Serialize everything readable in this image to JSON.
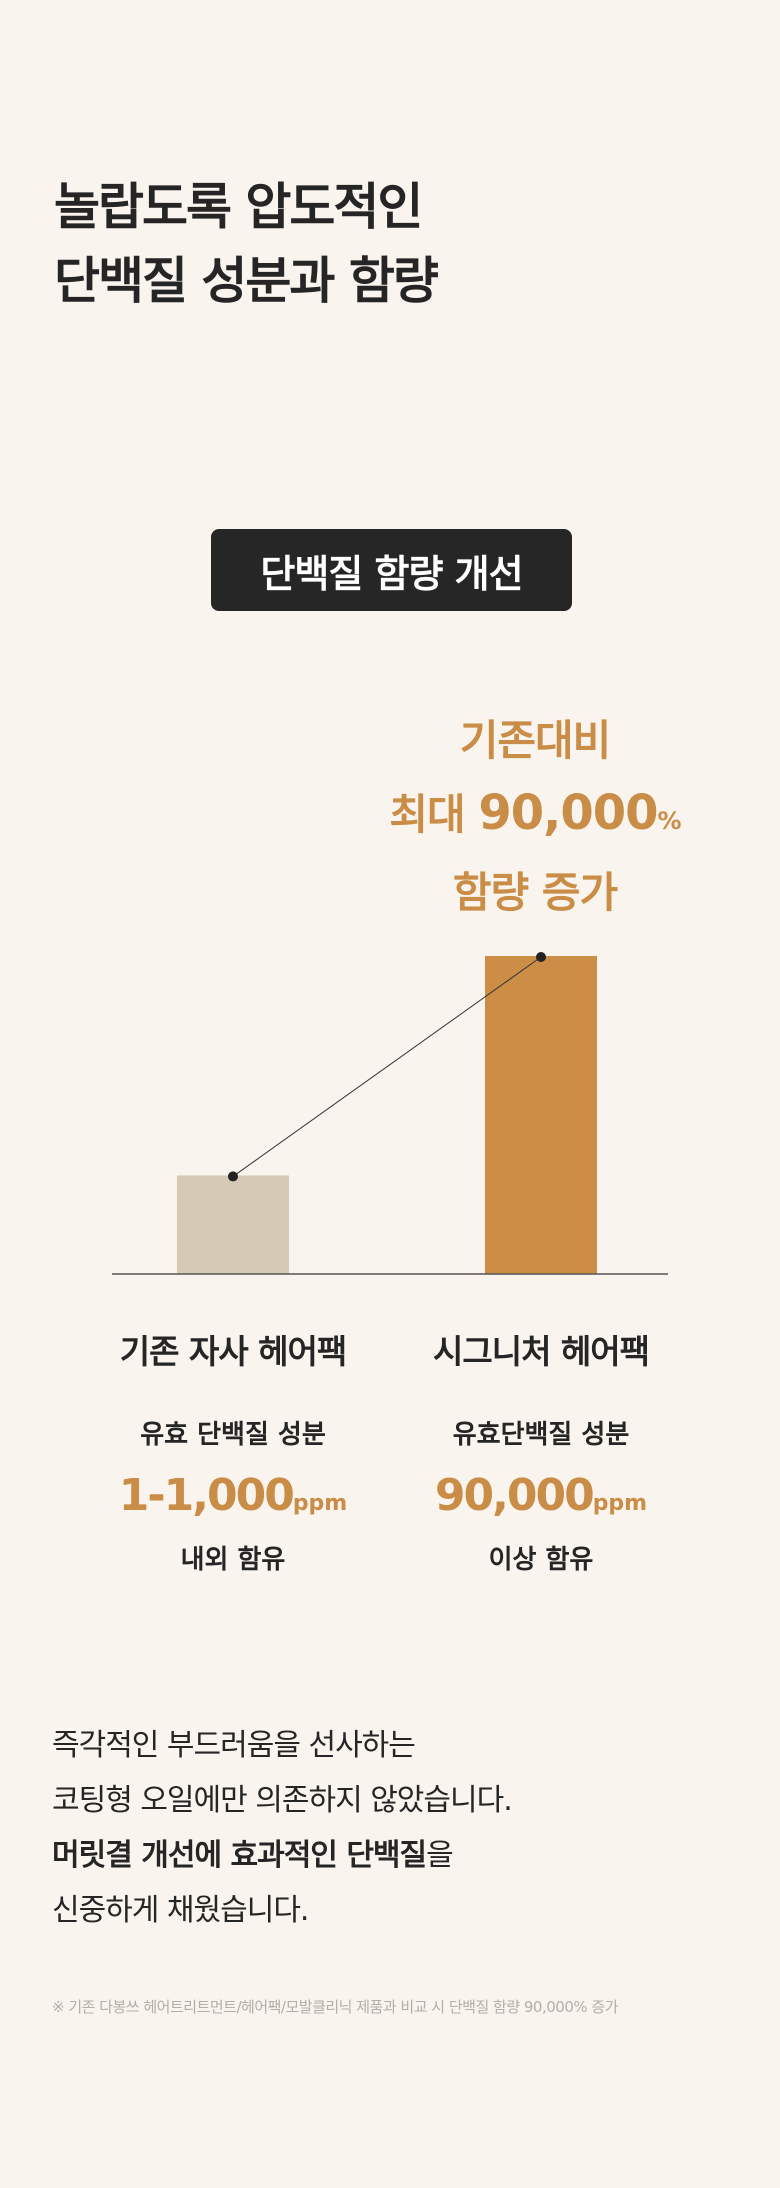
{
  "title": {
    "line1": "놀랍도록 압도적인",
    "line2": "단백질 성분과 함량"
  },
  "badge": "단백질 함량 개선",
  "callout": {
    "line1": "기존대비",
    "line2_prefix": "최대",
    "line2_value": "90,000",
    "line2_unit": "%",
    "line3": "함량 증가"
  },
  "chart_data": {
    "type": "bar",
    "categories": [
      "기존 자사 헤어팩",
      "시그니처 헤어팩"
    ],
    "colors": [
      "#d5cab6",
      "#cc8d47"
    ],
    "axis_color": "#555555",
    "connector": true,
    "relative_heights": [
      0.31,
      1.0
    ]
  },
  "products": [
    {
      "name": "기존 자사 헤어팩",
      "sub": "유효 단백질 성분",
      "value": "1-1,000",
      "unit": "ppm",
      "note": "내외 함유"
    },
    {
      "name": "시그니처 헤어팩",
      "sub": "유효단백질 성분",
      "value": "90,000",
      "unit": "ppm",
      "note": "이상 함유"
    }
  ],
  "body": {
    "line1": "즉각적인 부드러움을 선사하는",
    "line2": "코팅형 오일에만 의존하지 않았습니다.",
    "line3_bold": "머릿결 개선에 효과적인 단백질",
    "line3_rest": "을",
    "line4": "신중하게 채웠습니다."
  },
  "footnote": "※ 기존 다봉쓰 헤어트리트먼트/헤어팩/모발클리닉 제품과 비교 시 단백질 함량 90,000% 증가",
  "accent_color": "#c98d47"
}
